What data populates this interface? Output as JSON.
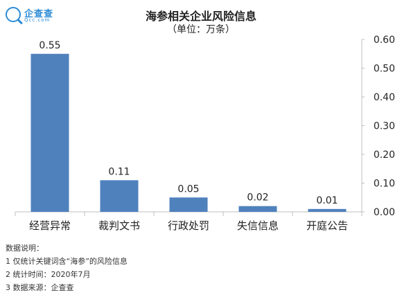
{
  "logo": {
    "name": "企查查",
    "sub": "Qcc.com"
  },
  "notes": {
    "heading": "数据说明：",
    "lines": [
      "1 仅统计关键词含“海参”的风险信息",
      "2 统计时间：2020年7月",
      "3 数据来源：企查查"
    ]
  },
  "chart_data": {
    "type": "bar",
    "title": "海参相关企业风险信息",
    "subtitle": "（单位：万条）",
    "categories": [
      "经营异常",
      "裁判文书",
      "行政处罚",
      "失信信息",
      "开庭公告"
    ],
    "values": [
      0.55,
      0.11,
      0.05,
      0.02,
      0.01
    ],
    "data_labels": [
      "0.55",
      "0.11",
      "0.05",
      "0.02",
      "0.01"
    ],
    "ylim": [
      0,
      0.6
    ],
    "yticks": [
      "0.00",
      "0.10",
      "0.20",
      "0.30",
      "0.40",
      "0.50",
      "0.60"
    ],
    "y_axis_side": "right",
    "bar_color": "#4f81bd",
    "grid": false,
    "legend": "none"
  }
}
